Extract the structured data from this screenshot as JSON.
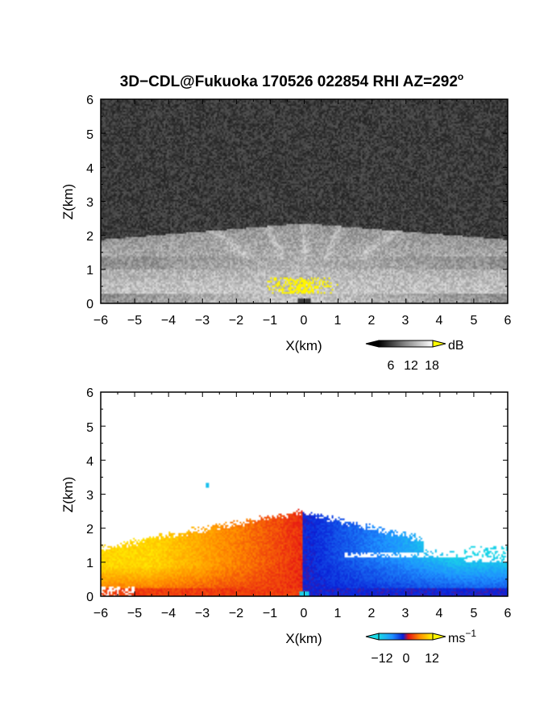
{
  "figure": {
    "title": "3D−CDL@Fukuoka 170526 022854 RHI AZ=292",
    "title_superscript": "o"
  },
  "chart_data": [
    {
      "type": "heatmap",
      "panel": "reflectivity",
      "xlabel": "X(km)",
      "ylabel": "Z(km)",
      "xlim": [
        -6,
        6
      ],
      "ylim": [
        0,
        6
      ],
      "xticks": [
        "−6",
        "−5",
        "−4",
        "−3",
        "−2",
        "−1",
        "0",
        "1",
        "2",
        "3",
        "4",
        "5",
        "6"
      ],
      "yticks": [
        "0",
        "1",
        "2",
        "3",
        "4",
        "5",
        "6"
      ],
      "colorbar": {
        "unit": "dB",
        "ticks": [
          "6",
          "12",
          "18"
        ],
        "range": [
          0,
          20
        ],
        "colormap": "grayscale",
        "over_color": "#ffff00"
      },
      "features": [
        {
          "label": "noise",
          "z_range": [
            2.4,
            6
          ],
          "level_db": 3
        },
        {
          "label": "aerosol layer",
          "z_range": [
            0,
            2.3
          ],
          "level_db": 12
        },
        {
          "label": "strong echo",
          "x_range": [
            -1.2,
            1.0
          ],
          "z_range": [
            0.3,
            0.8
          ],
          "level_db": 20
        }
      ]
    },
    {
      "type": "heatmap",
      "panel": "doppler velocity",
      "xlabel": "X(km)",
      "ylabel": "Z(km)",
      "xlim": [
        -6,
        6
      ],
      "ylim": [
        0,
        6
      ],
      "xticks": [
        "−6",
        "−5",
        "−4",
        "−3",
        "−2",
        "−1",
        "0",
        "1",
        "2",
        "3",
        "4",
        "5",
        "6"
      ],
      "yticks": [
        "0",
        "1",
        "2",
        "3",
        "4",
        "5",
        "6"
      ],
      "colorbar": {
        "unit": "ms",
        "unit_superscript": "−1",
        "ticks": [
          "−12",
          "0",
          "12"
        ],
        "range": [
          -15,
          15
        ],
        "colormap": "cyan-blue-red-yellow"
      },
      "features": [
        {
          "label": "left side (positive)",
          "x_range": [
            -6,
            0
          ],
          "z_range": [
            0,
            2.5
          ],
          "velocity": [
            2,
            14
          ]
        },
        {
          "label": "right side (negative)",
          "x_range": [
            0,
            6
          ],
          "z_range": [
            0,
            2.5
          ],
          "velocity": [
            -15,
            -8
          ]
        }
      ]
    }
  ]
}
